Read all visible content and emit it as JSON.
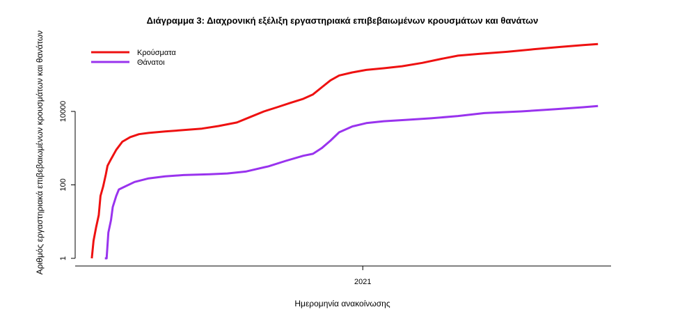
{
  "chart_data": {
    "type": "line",
    "title": "Διάγραμμα 3: Διαχρονική εξέλιξη εργαστηριακά επιβεβαιωμένων κρουσμάτων και θανάτων",
    "xlabel": "Ημερομηνία ανακοίνωσης",
    "ylabel": "Αριθμός εργαστηριακά επιβεβαιωμένων κρουσμάτων και θανάτων",
    "y_scale": "log",
    "x_ticks": [
      {
        "label": "2021",
        "date": "2021-01-01"
      }
    ],
    "y_ticks": [
      {
        "label": "1",
        "value": 1
      },
      {
        "label": "100",
        "value": 100
      },
      {
        "label": "10000",
        "value": 10000
      }
    ],
    "xlim": [
      "2020-02-07",
      "2021-10-12"
    ],
    "legend_position": "top-left",
    "grid": false,
    "series": [
      {
        "name": "Κρούσματα",
        "color": "#ee1111",
        "points": [
          [
            "2020-02-26",
            1
          ],
          [
            "2020-02-28",
            3
          ],
          [
            "2020-03-02",
            7
          ],
          [
            "2020-03-05",
            15
          ],
          [
            "2020-03-07",
            50
          ],
          [
            "2020-03-10",
            90
          ],
          [
            "2020-03-13",
            190
          ],
          [
            "2020-03-15",
            330
          ],
          [
            "2020-03-19",
            500
          ],
          [
            "2020-03-25",
            900
          ],
          [
            "2020-04-01",
            1500
          ],
          [
            "2020-04-10",
            2000
          ],
          [
            "2020-04-20",
            2400
          ],
          [
            "2020-05-01",
            2600
          ],
          [
            "2020-05-20",
            2850
          ],
          [
            "2020-06-10",
            3100
          ],
          [
            "2020-07-01",
            3400
          ],
          [
            "2020-07-20",
            4000
          ],
          [
            "2020-08-10",
            5000
          ],
          [
            "2020-08-25",
            7000
          ],
          [
            "2020-09-10",
            10000
          ],
          [
            "2020-09-25",
            13000
          ],
          [
            "2020-10-10",
            17000
          ],
          [
            "2020-10-25",
            22000
          ],
          [
            "2020-11-05",
            29000
          ],
          [
            "2020-11-15",
            45000
          ],
          [
            "2020-11-25",
            70000
          ],
          [
            "2020-12-05",
            95000
          ],
          [
            "2020-12-20",
            115000
          ],
          [
            "2021-01-05",
            135000
          ],
          [
            "2021-01-25",
            150000
          ],
          [
            "2021-02-15",
            170000
          ],
          [
            "2021-03-10",
            210000
          ],
          [
            "2021-04-01",
            270000
          ],
          [
            "2021-04-20",
            330000
          ],
          [
            "2021-05-15",
            370000
          ],
          [
            "2021-06-15",
            420000
          ],
          [
            "2021-07-15",
            490000
          ],
          [
            "2021-08-15",
            570000
          ],
          [
            "2021-09-10",
            640000
          ],
          [
            "2021-09-27",
            680000
          ]
        ]
      },
      {
        "name": "Θάνατοι",
        "color": "#9933ee",
        "points": [
          [
            "2020-03-12",
            1
          ],
          [
            "2020-03-14",
            1
          ],
          [
            "2020-03-16",
            5
          ],
          [
            "2020-03-19",
            11
          ],
          [
            "2020-03-21",
            25
          ],
          [
            "2020-03-25",
            50
          ],
          [
            "2020-03-28",
            75
          ],
          [
            "2020-04-04",
            90
          ],
          [
            "2020-04-15",
            120
          ],
          [
            "2020-05-01",
            150
          ],
          [
            "2020-05-20",
            170
          ],
          [
            "2020-06-10",
            185
          ],
          [
            "2020-07-10",
            195
          ],
          [
            "2020-07-30",
            205
          ],
          [
            "2020-08-20",
            230
          ],
          [
            "2020-09-15",
            320
          ],
          [
            "2020-10-05",
            450
          ],
          [
            "2020-10-25",
            620
          ],
          [
            "2020-11-05",
            700
          ],
          [
            "2020-11-15",
            1000
          ],
          [
            "2020-11-25",
            1600
          ],
          [
            "2020-12-05",
            2700
          ],
          [
            "2020-12-20",
            3900
          ],
          [
            "2021-01-05",
            4800
          ],
          [
            "2021-01-25",
            5400
          ],
          [
            "2021-02-20",
            5900
          ],
          [
            "2021-03-20",
            6500
          ],
          [
            "2021-04-20",
            7500
          ],
          [
            "2021-05-20",
            9000
          ],
          [
            "2021-07-01",
            10000
          ],
          [
            "2021-08-10",
            11500
          ],
          [
            "2021-09-10",
            13000
          ],
          [
            "2021-09-27",
            14000
          ]
        ]
      }
    ]
  }
}
